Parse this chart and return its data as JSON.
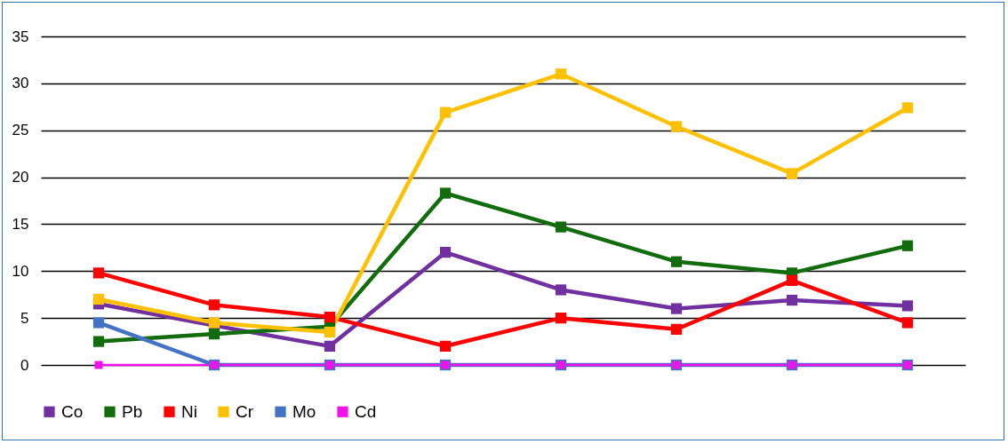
{
  "chart_data": {
    "type": "line",
    "categories": [
      null,
      null,
      null,
      null,
      null,
      null,
      null,
      null
    ],
    "series": [
      {
        "name": "Co",
        "color": "#7030a0",
        "values": [
          6.5,
          4.2,
          2.0,
          12.0,
          8.0,
          6.0,
          6.9,
          6.3
        ]
      },
      {
        "name": "Pb",
        "color": "#126b0c",
        "values": [
          2.5,
          3.3,
          4.1,
          18.3,
          14.7,
          11.0,
          9.8,
          12.7
        ]
      },
      {
        "name": "Ni",
        "color": "#ff0000",
        "values": [
          9.8,
          6.4,
          5.1,
          2.0,
          5.0,
          3.8,
          9.0,
          4.5
        ]
      },
      {
        "name": "Cr",
        "color": "#ffc000",
        "values": [
          7.0,
          4.5,
          3.5,
          26.9,
          31.0,
          25.4,
          20.4,
          27.4
        ]
      },
      {
        "name": "Mo",
        "color": "#4472c4",
        "values": [
          4.5,
          0,
          0,
          0,
          0,
          0,
          0,
          0
        ]
      },
      {
        "name": "Cd",
        "color": "#f012e8",
        "values": [
          0,
          0,
          0,
          0,
          0,
          0,
          0,
          0
        ]
      }
    ],
    "ylim": [
      0,
      35
    ],
    "yticks": [
      0,
      5,
      10,
      15,
      20,
      25,
      30,
      35
    ],
    "grid": "y",
    "legend": "bottom",
    "marker": "square",
    "tick_labels": "y"
  }
}
